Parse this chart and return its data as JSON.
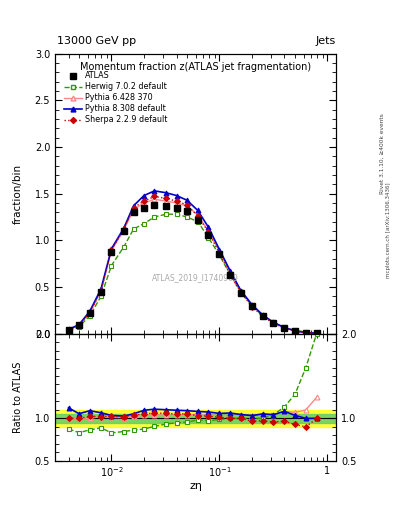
{
  "title": "Momentum fraction z(ATLAS jet fragmentation)",
  "header_left": "13000 GeV pp",
  "header_right": "Jets",
  "ylabel_main": "fraction/bin",
  "ylabel_ratio": "Ratio to ATLAS",
  "xlabel": "zη",
  "right_label_top": "Rivet 3.1.10, ≥400k events",
  "right_label_bot": "mcplots.cern.ch [arXiv:1306.3436]",
  "watermark": "ATLAS_2019_I1740909",
  "x": [
    0.004,
    0.005,
    0.0063,
    0.008,
    0.01,
    0.013,
    0.016,
    0.02,
    0.025,
    0.032,
    0.04,
    0.05,
    0.063,
    0.079,
    0.1,
    0.126,
    0.158,
    0.2,
    0.251,
    0.316,
    0.398,
    0.501,
    0.631,
    0.794
  ],
  "atlas": [
    0.04,
    0.09,
    0.22,
    0.45,
    0.88,
    1.1,
    1.3,
    1.35,
    1.38,
    1.37,
    1.35,
    1.31,
    1.22,
    1.06,
    0.85,
    0.63,
    0.44,
    0.3,
    0.19,
    0.115,
    0.06,
    0.028,
    0.01,
    0.004
  ],
  "herwig": [
    0.035,
    0.075,
    0.19,
    0.4,
    0.73,
    0.93,
    1.12,
    1.18,
    1.25,
    1.28,
    1.28,
    1.25,
    1.2,
    1.03,
    0.84,
    0.63,
    0.44,
    0.3,
    0.19,
    0.12,
    0.068,
    0.036,
    0.016,
    0.008
  ],
  "pythia6": [
    0.04,
    0.09,
    0.22,
    0.46,
    0.89,
    1.11,
    1.33,
    1.4,
    1.44,
    1.42,
    1.4,
    1.37,
    1.27,
    1.1,
    0.88,
    0.65,
    0.46,
    0.31,
    0.2,
    0.12,
    0.065,
    0.03,
    0.011,
    0.005
  ],
  "pythia8": [
    0.045,
    0.095,
    0.24,
    0.48,
    0.91,
    1.13,
    1.37,
    1.48,
    1.53,
    1.51,
    1.48,
    1.43,
    1.32,
    1.14,
    0.9,
    0.67,
    0.46,
    0.31,
    0.2,
    0.12,
    0.065,
    0.029,
    0.01,
    0.004
  ],
  "sherpa": [
    0.04,
    0.09,
    0.225,
    0.46,
    0.9,
    1.12,
    1.35,
    1.42,
    1.47,
    1.45,
    1.42,
    1.38,
    1.26,
    1.09,
    0.86,
    0.63,
    0.44,
    0.29,
    0.185,
    0.11,
    0.058,
    0.026,
    0.009,
    0.004
  ],
  "atlas_color": "#000000",
  "herwig_color": "#339900",
  "pythia6_color": "#ff8888",
  "pythia8_color": "#0000cc",
  "sherpa_color": "#cc0000",
  "ylim_main": [
    0,
    3.0
  ],
  "ylim_ratio": [
    0.5,
    2.0
  ],
  "band_yellow": [
    0.9,
    1.1
  ],
  "band_green": [
    0.95,
    1.05
  ]
}
